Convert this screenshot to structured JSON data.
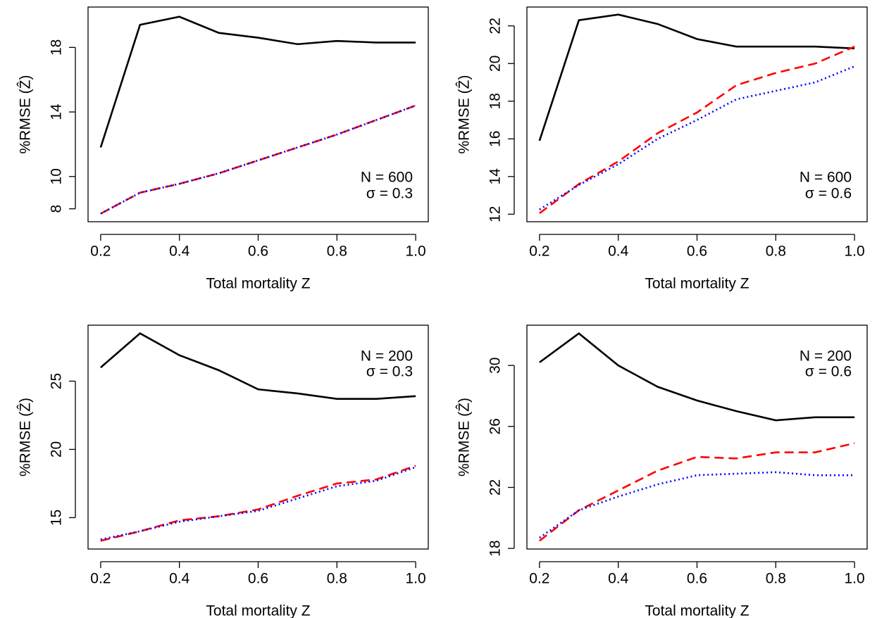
{
  "chart_data": [
    {
      "type": "line",
      "x_label": "Total mortality Z",
      "y_label": "%RMSE (Ẑ)",
      "annotations": [
        "N = 600",
        "σ = 0.3"
      ],
      "annotation_corner": "bottomright",
      "x": [
        0.2,
        0.3,
        0.4,
        0.5,
        0.6,
        0.7,
        0.8,
        0.9,
        1.0
      ],
      "xlim": [
        0.168,
        1.032
      ],
      "xticks": [
        0.2,
        0.4,
        0.6,
        0.8,
        {
          "value": 1,
          "label": "1.0"
        }
      ],
      "ylim": [
        7.2,
        20.5
      ],
      "yticks": [
        8,
        10,
        14,
        18
      ],
      "series": [
        {
          "color": "#000000",
          "style": "solid",
          "values": [
            11.8,
            19.4,
            19.9,
            18.9,
            18.6,
            18.2,
            18.4,
            18.3,
            18.3
          ]
        },
        {
          "color": "#ff0000",
          "style": "dashed",
          "values": [
            7.7,
            9.0,
            9.55,
            10.2,
            11.0,
            11.8,
            12.6,
            13.5,
            14.4
          ]
        },
        {
          "color": "#0000ff",
          "style": "dotted",
          "values": [
            7.7,
            9.0,
            9.55,
            10.2,
            11.0,
            11.8,
            12.6,
            13.5,
            14.4
          ]
        }
      ]
    },
    {
      "type": "line",
      "x_label": "Total mortality Z",
      "y_label": "%RMSE (Ẑ)",
      "annotations": [
        "N = 600",
        "σ = 0.6"
      ],
      "annotation_corner": "bottomright",
      "x": [
        0.2,
        0.3,
        0.4,
        0.5,
        0.6,
        0.7,
        0.8,
        0.9,
        1.0
      ],
      "xlim": [
        0.168,
        1.032
      ],
      "xticks": [
        0.2,
        0.4,
        0.6,
        0.8,
        {
          "value": 1,
          "label": "1.0"
        }
      ],
      "ylim": [
        11.6,
        23.0
      ],
      "yticks": [
        12,
        14,
        16,
        18,
        20,
        22
      ],
      "series": [
        {
          "color": "#000000",
          "style": "solid",
          "values": [
            15.9,
            22.3,
            22.6,
            22.1,
            21.3,
            20.9,
            20.9,
            20.9,
            20.8
          ]
        },
        {
          "color": "#ff0000",
          "style": "dashed",
          "values": [
            12.05,
            13.6,
            14.8,
            16.3,
            17.4,
            18.85,
            19.5,
            20.0,
            20.9
          ]
        },
        {
          "color": "#0000ff",
          "style": "dotted",
          "values": [
            12.25,
            13.55,
            14.65,
            16.0,
            17.0,
            18.1,
            18.55,
            19.0,
            19.85
          ]
        }
      ]
    },
    {
      "type": "line",
      "x_label": "Total mortality Z",
      "y_label": "%RMSE (Ẑ)",
      "annotations": [
        "N = 200",
        "σ = 0.3"
      ],
      "annotation_corner": "topright",
      "x": [
        0.2,
        0.3,
        0.4,
        0.5,
        0.6,
        0.7,
        0.8,
        0.9,
        1.0
      ],
      "xlim": [
        0.168,
        1.032
      ],
      "xticks": [
        0.2,
        0.4,
        0.6,
        0.8,
        {
          "value": 1,
          "label": "1.0"
        }
      ],
      "ylim": [
        12.7,
        29.1
      ],
      "yticks": [
        15,
        20,
        25
      ],
      "series": [
        {
          "color": "#000000",
          "style": "solid",
          "values": [
            26.0,
            28.5,
            26.9,
            25.8,
            24.4,
            24.1,
            23.7,
            23.7,
            23.9
          ]
        },
        {
          "color": "#ff0000",
          "style": "dashed",
          "values": [
            13.3,
            14.0,
            14.8,
            15.1,
            15.6,
            16.6,
            17.5,
            17.8,
            18.8
          ]
        },
        {
          "color": "#0000ff",
          "style": "dotted",
          "values": [
            13.4,
            14.0,
            14.7,
            15.1,
            15.5,
            16.4,
            17.3,
            17.7,
            18.7
          ]
        }
      ]
    },
    {
      "type": "line",
      "x_label": "Total mortality Z",
      "y_label": "%RMSE (Ẑ)",
      "annotations": [
        "N = 200",
        "σ = 0.6"
      ],
      "annotation_corner": "topright",
      "x": [
        0.2,
        0.3,
        0.4,
        0.5,
        0.6,
        0.7,
        0.8,
        0.9,
        1.0
      ],
      "xlim": [
        0.168,
        1.032
      ],
      "xticks": [
        0.2,
        0.4,
        0.6,
        0.8,
        {
          "value": 1,
          "label": "1.0"
        }
      ],
      "ylim": [
        17.96,
        32.64
      ],
      "yticks": [
        18,
        22,
        26,
        30
      ],
      "series": [
        {
          "color": "#000000",
          "style": "solid",
          "values": [
            30.2,
            32.1,
            30.0,
            28.6,
            27.7,
            27.0,
            26.4,
            26.6,
            26.6
          ]
        },
        {
          "color": "#ff0000",
          "style": "dashed",
          "values": [
            18.5,
            20.5,
            21.8,
            23.1,
            24.0,
            23.9,
            24.3,
            24.3,
            24.9
          ]
        },
        {
          "color": "#0000ff",
          "style": "dotted",
          "values": [
            18.7,
            20.5,
            21.4,
            22.2,
            22.8,
            22.9,
            23.0,
            22.8,
            22.8
          ]
        }
      ]
    }
  ]
}
